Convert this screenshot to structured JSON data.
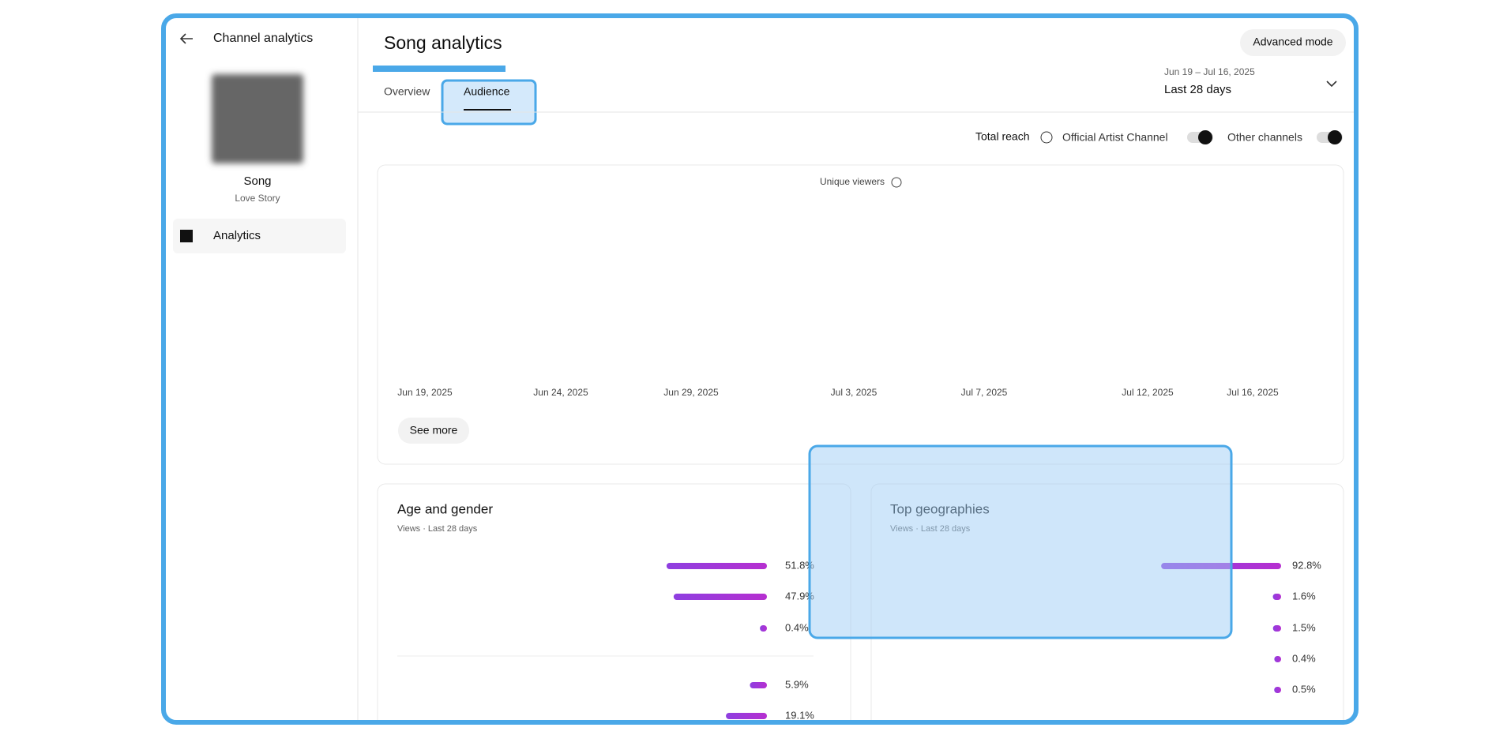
{
  "sidebar": {
    "header": "Channel analytics",
    "song_title": "Song",
    "song_subtitle": "Love Story",
    "nav": "Analytics"
  },
  "header": {
    "title": "Song analytics",
    "tabs": [
      "Overview",
      "Audience"
    ],
    "button": "Advanced mode",
    "date_range": "Jun 19 – Jul 16, 2025",
    "period": "Last 28 days"
  },
  "filters": {
    "total_reach": "Total reach",
    "official": "Official Artist Channel",
    "other": "Other channels"
  },
  "reach_chart": {
    "title": "Unique viewers",
    "x_labels": [
      "Jun 19, 2025",
      "Jun 24, 2025",
      "Jun 29, 2025",
      "Jul 3, 2025",
      "Jul 7, 2025",
      "Jul 12, 2025",
      "Jul 16, 2025"
    ],
    "button": "See more"
  },
  "age_gender": {
    "title": "Age and gender",
    "subtitle": "Views · Last 28 days",
    "values": [
      51.8,
      47.9,
      0.4,
      5.9,
      19.1
    ],
    "value_labels": [
      "51.8%",
      "47.9%",
      "0.4%",
      "5.9%",
      "19.1%"
    ]
  },
  "geographies": {
    "title": "Top geographies",
    "subtitle": "Views · Last 28 days",
    "values": [
      92.8,
      1.6,
      1.5,
      0.4,
      0.5
    ],
    "value_labels": [
      "92.8%",
      "1.6%",
      "1.5%",
      "0.4%",
      "0.5%"
    ]
  }
}
